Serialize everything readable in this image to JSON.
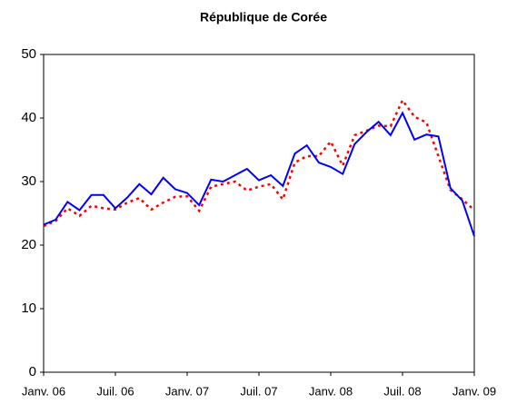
{
  "chart_data": {
    "type": "line",
    "title": "République de Corée",
    "categories": [
      "Janv. 06",
      null,
      null,
      null,
      null,
      null,
      "Juil. 06",
      null,
      null,
      null,
      null,
      null,
      "Janv. 07",
      null,
      null,
      null,
      null,
      null,
      "Juil. 07",
      null,
      null,
      null,
      null,
      null,
      "Janv. 08",
      null,
      null,
      null,
      null,
      null,
      "Juil. 08",
      null,
      null,
      null,
      null,
      null,
      "Janv. 09"
    ],
    "series": [
      {
        "color": "#0000ff",
        "dash": "solid",
        "values": [
          23.2,
          24,
          26.8,
          25.5,
          27.9,
          27.9,
          25.8,
          27.5,
          29.6,
          28,
          30.6,
          28.8,
          28.2,
          26.3,
          30.3,
          30,
          31,
          32,
          30.2,
          31,
          29.3,
          34.4,
          35.7,
          33,
          32.3,
          31.2,
          35.9,
          37.8,
          39.4,
          37.3,
          40.8,
          36.6,
          37.4,
          37.1,
          29,
          27,
          21.4
        ]
      },
      {
        "color": "#ff0000",
        "dash": "dotted",
        "values": [
          23,
          23.8,
          25.8,
          24.6,
          26.2,
          25.8,
          25.6,
          26.7,
          27.4,
          25.6,
          26.7,
          27.6,
          27.7,
          25.4,
          29.2,
          29.6,
          30,
          28.6,
          29.2,
          29.6,
          27.2,
          33,
          34,
          34,
          36.3,
          32.5,
          37.3,
          38,
          38.8,
          38.7,
          42.8,
          40.2,
          39.3,
          34,
          28.7,
          27.2,
          25.5
        ]
      }
    ],
    "ylim": [
      0,
      50
    ],
    "yticks": [
      0,
      10,
      20,
      30,
      40,
      50
    ],
    "grid": false
  }
}
